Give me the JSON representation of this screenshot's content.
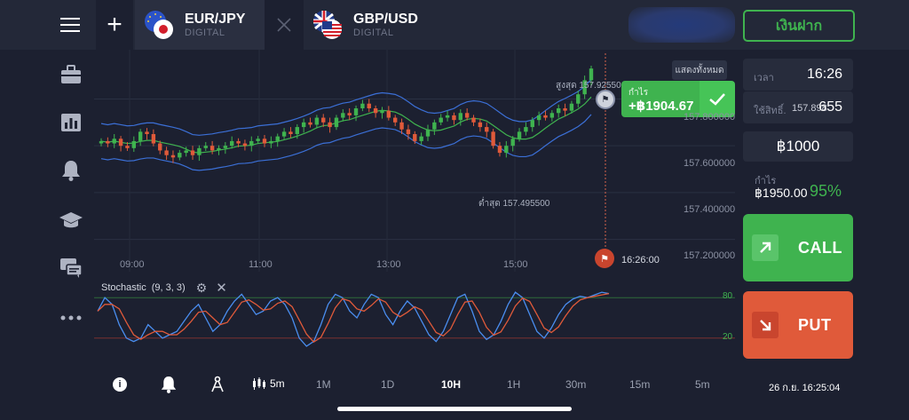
{
  "header": {
    "menu_icon": "hamburger-menu-icon",
    "add_icon": "plus-icon",
    "tabs": [
      {
        "pair": "EUR/JPY",
        "type": "DIGITAL",
        "flag": "eu-jp-flag-icon"
      },
      {
        "pair": "GBP/USD",
        "type": "DIGITAL",
        "flag": "gb-us-flag-icon"
      }
    ],
    "deposit_label": "เงินฝาก"
  },
  "sidebar": {
    "items": [
      "briefcase-icon",
      "chart-bars-icon",
      "bell-icon",
      "graduation-cap-icon",
      "chat-icon",
      "more-dots-icon"
    ]
  },
  "chart": {
    "show_all_label": "แสดงทั้งหมด",
    "high_label": "สูงสุด 157.92550",
    "low_label": "ต่ำสุด 157.495500",
    "profit_label": "กำไร",
    "profit_value": "+฿1904.67",
    "expiry_time": "16:26:00",
    "price_ticks": [
      "157.800000",
      "157.600000",
      "157.400000",
      "157.200000"
    ],
    "time_ticks": [
      "09:00",
      "11:00",
      "13:00",
      "15:00"
    ],
    "indicator_label": "Stochastic",
    "indicator_params": "(9, 3, 3)",
    "osc_levels": [
      "80",
      "20"
    ],
    "colors": {
      "bull": "#3fb34f",
      "bear": "#e05a3a",
      "band": "#3b6fd6",
      "mid": "#3fb34f"
    }
  },
  "chart_data": {
    "type": "candlestick",
    "title": "EUR/JPY",
    "ylim": [
      157.1,
      157.98
    ],
    "y_ticks": [
      157.8,
      157.6,
      157.4,
      157.2
    ],
    "x_ticks": [
      "09:00",
      "11:00",
      "13:00",
      "15:00"
    ],
    "closes": [
      157.62,
      157.61,
      157.63,
      157.6,
      157.59,
      157.62,
      157.66,
      157.65,
      157.61,
      157.58,
      157.56,
      157.55,
      157.57,
      157.58,
      157.56,
      157.59,
      157.6,
      157.58,
      157.59,
      157.6,
      157.62,
      157.61,
      157.6,
      157.62,
      157.63,
      157.61,
      157.62,
      157.64,
      157.66,
      157.65,
      157.68,
      157.7,
      157.69,
      157.72,
      157.7,
      157.68,
      157.72,
      157.74,
      157.73,
      157.76,
      157.78,
      157.76,
      157.74,
      157.75,
      157.72,
      157.7,
      157.67,
      157.65,
      157.62,
      157.64,
      157.67,
      157.7,
      157.72,
      157.73,
      157.71,
      157.74,
      157.72,
      157.7,
      157.68,
      157.66,
      157.6,
      157.57,
      157.6,
      157.63,
      157.66,
      157.68,
      157.71,
      157.73,
      157.72,
      157.74,
      157.76,
      157.75,
      157.78,
      157.82,
      157.88,
      157.93
    ],
    "high": 157.9255,
    "low": 157.4955,
    "stochastic": {
      "k": [
        60,
        80,
        70,
        40,
        20,
        15,
        20,
        40,
        30,
        20,
        25,
        30,
        45,
        60,
        70,
        50,
        30,
        40,
        60,
        75,
        85,
        70,
        55,
        60,
        75,
        80,
        70,
        50,
        20,
        8,
        15,
        40,
        70,
        85,
        80,
        60,
        50,
        70,
        85,
        80,
        55,
        40,
        60,
        75,
        65,
        45,
        25,
        15,
        30,
        55,
        80,
        85,
        60,
        30,
        18,
        25,
        45,
        70,
        88,
        80,
        55,
        30,
        20,
        35,
        55,
        70,
        78,
        82,
        80,
        84,
        88,
        86
      ],
      "levels": [
        80,
        20
      ]
    }
  },
  "panel": {
    "time_label": "เวลา",
    "time_value": "16:26",
    "investment_label": "ใช้สิทธิ์.",
    "investment_prefix": "157.898",
    "investment_suffix": "655",
    "amount": "฿1000",
    "profit_label": "กำไร",
    "profit_value": "฿1950.00",
    "profit_percent": "95%",
    "call_label": "CALL",
    "put_label": "PUT"
  },
  "bottombar": {
    "timeframe": "5m",
    "periods": [
      "1M",
      "1D",
      "10H",
      "1H",
      "30m",
      "15m",
      "5m"
    ],
    "selected_period": "10H",
    "datetime": "26 ก.ย. 16:25:04"
  }
}
